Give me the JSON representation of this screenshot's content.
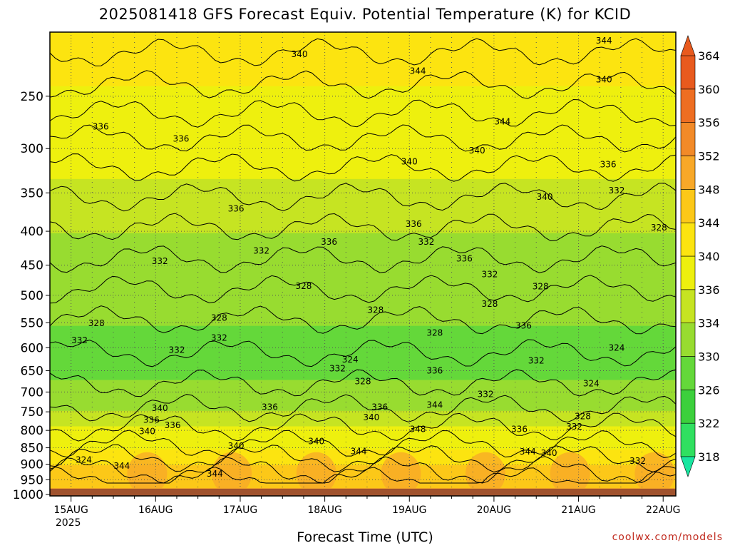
{
  "chart_data": {
    "type": "heatmap",
    "title": "2025081418 GFS Forecast Equiv. Potential Temperature (K) for KCID",
    "xlabel": "Forecast Time (UTC)",
    "ylabel": "",
    "credit": "coolwx.com/models",
    "x_ticks": [
      {
        "label": "15AUG",
        "sublabel": "2025",
        "day": 15
      },
      {
        "label": "16AUG",
        "sublabel": "",
        "day": 16
      },
      {
        "label": "17AUG",
        "sublabel": "",
        "day": 17
      },
      {
        "label": "18AUG",
        "sublabel": "",
        "day": 18
      },
      {
        "label": "19AUG",
        "sublabel": "",
        "day": 19
      },
      {
        "label": "20AUG",
        "sublabel": "",
        "day": 20
      },
      {
        "label": "21AUG",
        "sublabel": "",
        "day": 21
      },
      {
        "label": "22AUG",
        "sublabel": "",
        "day": 22
      }
    ],
    "xlim": [
      14.75,
      22.15
    ],
    "y_ticks": [
      250,
      300,
      350,
      400,
      450,
      500,
      550,
      600,
      650,
      700,
      750,
      800,
      850,
      900,
      950,
      1000
    ],
    "ylim": [
      1005,
      200
    ],
    "y_scale": "log",
    "ground_level": 980,
    "grid": true,
    "colorbar": {
      "levels": [
        318,
        322,
        326,
        330,
        334,
        336,
        340,
        344,
        348,
        352,
        356,
        360,
        364
      ],
      "colors": [
        "#18e6a0",
        "#30e060",
        "#3cd03c",
        "#64d83a",
        "#98dc30",
        "#c6e422",
        "#eef00e",
        "#fce410",
        "#fcc818",
        "#f8a828",
        "#f28a28",
        "#ee6e22",
        "#e85a1e"
      ],
      "extend": "both"
    },
    "contour_labels": [
      {
        "text": "340",
        "x": 17.7,
        "p": 216
      },
      {
        "text": "344",
        "x": 19.1,
        "p": 229
      },
      {
        "text": "344",
        "x": 21.3,
        "p": 206
      },
      {
        "text": "340",
        "x": 21.3,
        "p": 236
      },
      {
        "text": "336",
        "x": 15.35,
        "p": 278
      },
      {
        "text": "336",
        "x": 16.3,
        "p": 290
      },
      {
        "text": "344",
        "x": 20.1,
        "p": 273
      },
      {
        "text": "340",
        "x": 19.0,
        "p": 314
      },
      {
        "text": "340",
        "x": 19.8,
        "p": 302
      },
      {
        "text": "336",
        "x": 21.35,
        "p": 317
      },
      {
        "text": "332",
        "x": 21.45,
        "p": 347
      },
      {
        "text": "340",
        "x": 20.6,
        "p": 355
      },
      {
        "text": "336",
        "x": 16.95,
        "p": 370
      },
      {
        "text": "336",
        "x": 19.05,
        "p": 390
      },
      {
        "text": "328",
        "x": 21.95,
        "p": 395
      },
      {
        "text": "336",
        "x": 18.05,
        "p": 415
      },
      {
        "text": "332",
        "x": 19.2,
        "p": 415
      },
      {
        "text": "332",
        "x": 17.25,
        "p": 428
      },
      {
        "text": "332",
        "x": 16.05,
        "p": 444
      },
      {
        "text": "336",
        "x": 19.65,
        "p": 440
      },
      {
        "text": "332",
        "x": 19.95,
        "p": 465
      },
      {
        "text": "328",
        "x": 17.75,
        "p": 484
      },
      {
        "text": "328",
        "x": 20.55,
        "p": 485
      },
      {
        "text": "328",
        "x": 19.95,
        "p": 515
      },
      {
        "text": "328",
        "x": 18.6,
        "p": 526
      },
      {
        "text": "328",
        "x": 16.75,
        "p": 541
      },
      {
        "text": "328",
        "x": 15.3,
        "p": 551
      },
      {
        "text": "336",
        "x": 20.35,
        "p": 556
      },
      {
        "text": "328",
        "x": 19.3,
        "p": 570
      },
      {
        "text": "332",
        "x": 16.75,
        "p": 580
      },
      {
        "text": "332",
        "x": 15.1,
        "p": 585
      },
      {
        "text": "332",
        "x": 16.25,
        "p": 605
      },
      {
        "text": "324",
        "x": 21.45,
        "p": 600
      },
      {
        "text": "324",
        "x": 18.3,
        "p": 625
      },
      {
        "text": "332",
        "x": 20.5,
        "p": 628
      },
      {
        "text": "332",
        "x": 18.15,
        "p": 645
      },
      {
        "text": "336",
        "x": 19.3,
        "p": 650
      },
      {
        "text": "328",
        "x": 18.45,
        "p": 675
      },
      {
        "text": "324",
        "x": 21.15,
        "p": 680
      },
      {
        "text": "332",
        "x": 19.9,
        "p": 705
      },
      {
        "text": "344",
        "x": 19.3,
        "p": 732
      },
      {
        "text": "336",
        "x": 17.35,
        "p": 738
      },
      {
        "text": "340",
        "x": 16.05,
        "p": 740
      },
      {
        "text": "336",
        "x": 18.65,
        "p": 738
      },
      {
        "text": "328",
        "x": 21.05,
        "p": 762
      },
      {
        "text": "340",
        "x": 18.55,
        "p": 765
      },
      {
        "text": "336",
        "x": 15.95,
        "p": 771
      },
      {
        "text": "336",
        "x": 16.2,
        "p": 786
      },
      {
        "text": "332",
        "x": 20.95,
        "p": 790
      },
      {
        "text": "348",
        "x": 19.1,
        "p": 797
      },
      {
        "text": "336",
        "x": 20.3,
        "p": 797
      },
      {
        "text": "340",
        "x": 15.9,
        "p": 803
      },
      {
        "text": "340",
        "x": 17.9,
        "p": 831
      },
      {
        "text": "340",
        "x": 16.95,
        "p": 845
      },
      {
        "text": "344",
        "x": 18.4,
        "p": 860
      },
      {
        "text": "344",
        "x": 20.4,
        "p": 862
      },
      {
        "text": "340",
        "x": 20.65,
        "p": 866
      },
      {
        "text": "324",
        "x": 15.15,
        "p": 887
      },
      {
        "text": "332",
        "x": 21.7,
        "p": 890
      },
      {
        "text": "344",
        "x": 15.6,
        "p": 905
      },
      {
        "text": "344",
        "x": 16.7,
        "p": 930
      }
    ]
  }
}
